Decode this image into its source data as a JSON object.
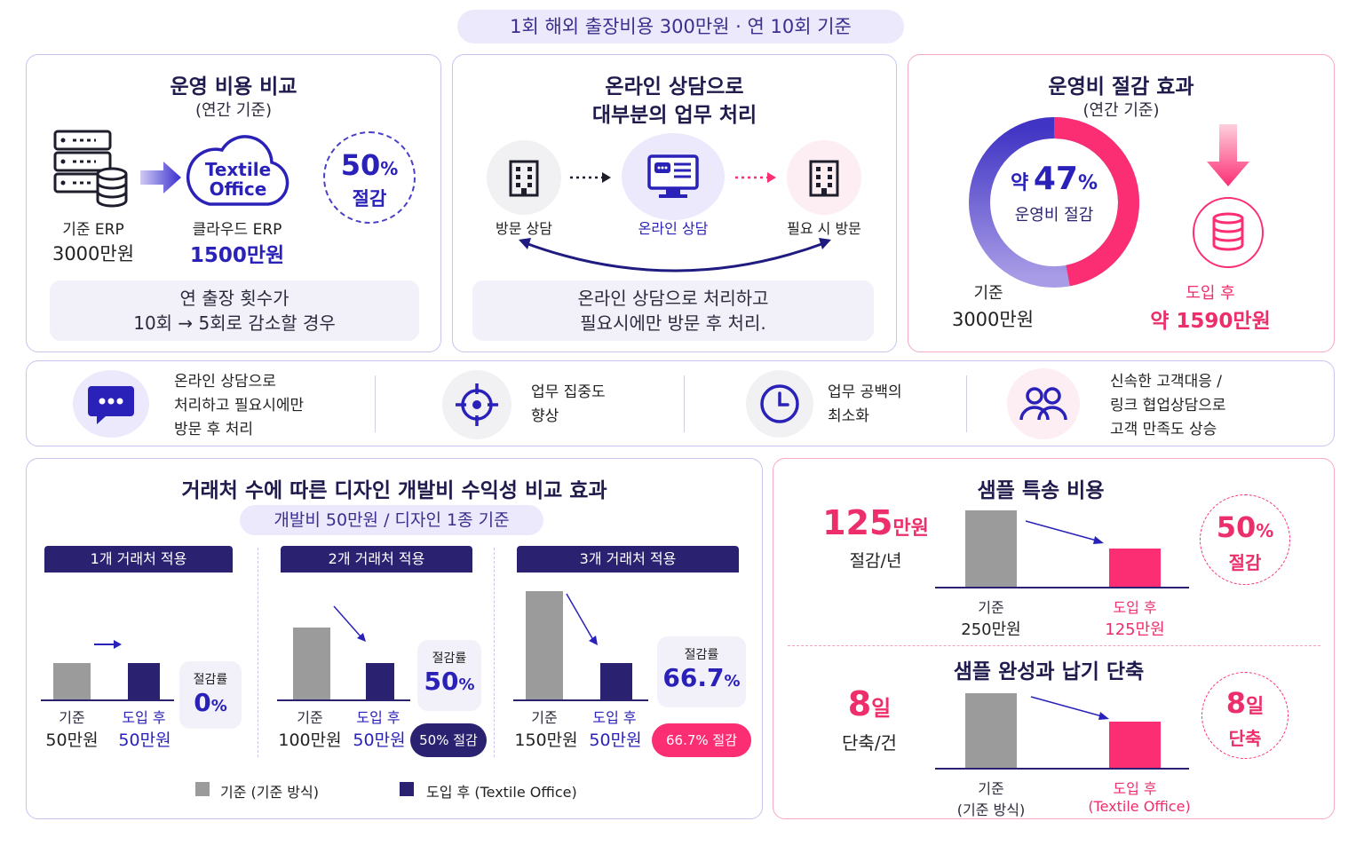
{
  "header": "1회 해외 출장비용 300만원 · 연 10회 기준",
  "card1": {
    "title": "운영 비용 비교",
    "subtitle": "(연간 기준)",
    "logo_line1": "Textile",
    "logo_line2": "Office",
    "left_label": "기준 ERP",
    "left_value": "3000만원",
    "right_label": "클라우드 ERP",
    "right_value": "1500만원",
    "circle_num": "50",
    "circle_pct": "%",
    "circle_text": "절감",
    "note_line1": "연 출장 횟수가",
    "note_line2": "10회 → 5회로 감소할 경우"
  },
  "card2": {
    "title_line1": "온라인 상담으로",
    "title_line2": "대부분의 업무 처리",
    "step1": "방문 상담",
    "step2": "온라인 상담",
    "step3": "필요 시 방문",
    "note_line1": "온라인 상담으로 처리하고",
    "note_line2": "필요시에만 방문 후 처리."
  },
  "card3": {
    "title": "운영비 절감 효과",
    "subtitle": "(연간 기준)",
    "donut_prefix": "약",
    "donut_num": "47",
    "donut_pct": "%",
    "donut_text": "운영비 절감",
    "saving_fraction": 0.47,
    "left_label": "기준",
    "left_value": "3000만원",
    "right_label": "도입 후",
    "right_value": "약 1590만원"
  },
  "benefits": [
    {
      "icon": "chat-icon",
      "lines": [
        "온라인 상담으로",
        "처리하고 필요시에만",
        "방문 후 처리"
      ]
    },
    {
      "icon": "target-icon",
      "lines": [
        "업무 집중도",
        "향상"
      ]
    },
    {
      "icon": "clock-icon",
      "lines": [
        "업무 공백의",
        "최소화"
      ]
    },
    {
      "icon": "users-icon",
      "lines": [
        "신속한 고객대응 /",
        "링크 협업상담으로",
        "고객 만족도 상승"
      ]
    }
  ],
  "design": {
    "title": "거래처 수에 따른 디자인 개발비 수익성 비교 효과",
    "subtitle": "개발비 50만원 / 디자인 1종 기준",
    "groups": [
      {
        "header": "1개 거래처 적용",
        "base_label": "기준",
        "base_value": "50만원",
        "after_label": "도입 후",
        "after_value": "50만원",
        "rate_label": "절감률",
        "rate_num": "0",
        "rate_pct": "%",
        "badge": ""
      },
      {
        "header": "2개 거래처 적용",
        "base_label": "기준",
        "base_value": "100만원",
        "after_label": "도입 후",
        "after_value": "50만원",
        "rate_label": "절감률",
        "rate_num": "50",
        "rate_pct": "%",
        "badge": "50% 절감"
      },
      {
        "header": "3개 거래처 적용",
        "base_label": "기준",
        "base_value": "150만원",
        "after_label": "도입 후",
        "after_value": "50만원",
        "rate_label": "절감률",
        "rate_num": "66.7",
        "rate_pct": "%",
        "badge": "66.7% 절감"
      }
    ],
    "legend_base": "기준 (기준 방식)",
    "legend_after": "도입 후 (Textile Office)"
  },
  "chart_data": [
    {
      "type": "bar",
      "categories": [
        "기준",
        "도입 후"
      ],
      "values": [
        50,
        50
      ],
      "title": "1개 거래처 적용"
    },
    {
      "type": "bar",
      "categories": [
        "기준",
        "도입 후"
      ],
      "values": [
        100,
        50
      ],
      "title": "2개 거래처 적용"
    },
    {
      "type": "bar",
      "categories": [
        "기준",
        "도입 후"
      ],
      "values": [
        150,
        50
      ],
      "title": "3개 거래처 적용"
    },
    {
      "type": "bar",
      "categories": [
        "기준",
        "도입 후"
      ],
      "values": [
        250,
        125
      ],
      "title": "샘플 특송 비용"
    }
  ],
  "sample": {
    "title1": "샘플 특송 비용",
    "big1_num": "125",
    "big1_unit": "만원",
    "big1_sub": "절감/년",
    "s1_base_label": "기준",
    "s1_base_value": "250만원",
    "s1_after_label": "도입 후",
    "s1_after_value": "125만원",
    "circle1_num": "50",
    "circle1_pct": "%",
    "circle1_text": "절감",
    "title2": "샘플 완성과 납기 단축",
    "big2_num": "8",
    "big2_unit": "일",
    "big2_sub": "단축/건",
    "s2_base_label": "기준",
    "s2_base_sub": "(기준 방식)",
    "s2_after_label": "도입 후",
    "s2_after_sub": "(Textile Office)",
    "circle2_num": "8",
    "circle2_unit": "일",
    "circle2_text": "단축"
  },
  "colors": {
    "navy": "#2a2270",
    "pink": "#fb2e74",
    "gray": "#9b9b9b",
    "purple": "#5b4fc9"
  }
}
